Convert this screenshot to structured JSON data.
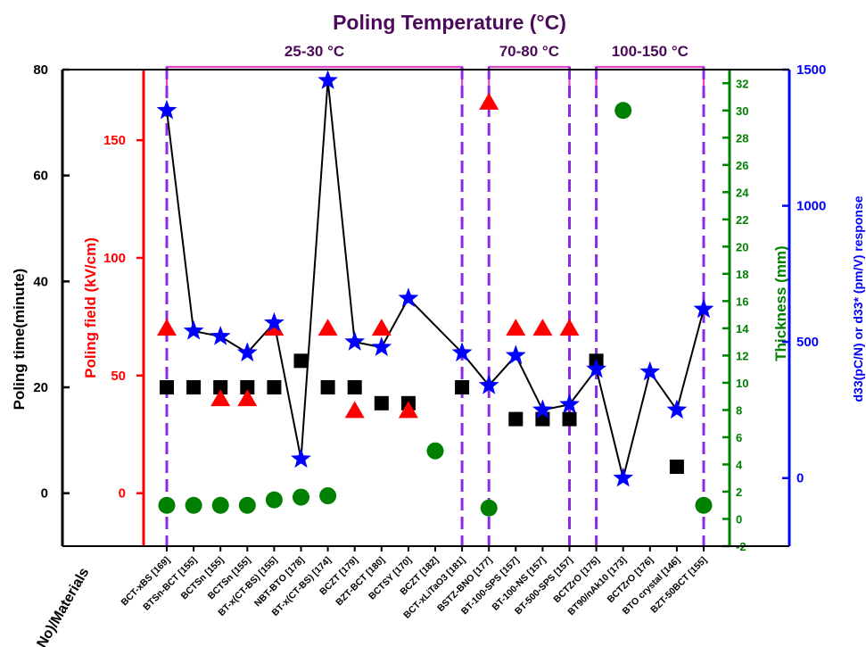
{
  "colors": {
    "black": "#000000",
    "poling_field": "#ff0000",
    "thickness": "#008000",
    "d33": "#0000ff",
    "temp_divider": "#8a2be2",
    "temp_bracket": "#e048c8",
    "title": "#4b0b5a"
  },
  "chart_data": {
    "type": "scatter",
    "title": "Poling Temperature (°C)",
    "xlabel": "(Ref.No)/Materials",
    "categories": [
      "BCT-xBS [169]",
      "BTSn-BCT [155]",
      "BCTSn [155]",
      "BCTSn [155]",
      "BT-x(CT-BS) [155]",
      "NBT-BTO [178]",
      "BT-x(CT-BS) [174]",
      "BCZT [179]",
      "BZT-BCT [180]",
      "BCTSY [170]",
      "BCZT [182]",
      "BCT-xLiTaO3 [181]",
      "BSTZ-BNO [177]",
      "BT-100-SPS [157]",
      "BT-100-NS [157]",
      "BT-500-SPS [157]",
      "BCTZrO [175]",
      "BT90/nAk10 [173]",
      "BCTZrO [176]",
      "BTO crystal [146]",
      "BZT-50BCT [155]"
    ],
    "temperature_ranges": [
      {
        "label": "25-30 °C",
        "from_index": 0,
        "to_index": 11
      },
      {
        "label": "70-80 °C",
        "from_index": 12,
        "to_index": 15
      },
      {
        "label": "100-150 °C",
        "from_index": 16,
        "to_index": 20
      }
    ],
    "axes": {
      "left_black": {
        "label": "Poling time(minute)",
        "ticks": [
          0,
          20,
          40,
          60,
          80
        ],
        "ylim": [
          -10,
          80
        ]
      },
      "left_red": {
        "label": "Poling field (kV/cm)",
        "ticks": [
          0,
          50,
          100,
          150
        ],
        "ylim": [
          -22.5,
          180
        ]
      },
      "right_green": {
        "label": "Thickness (mm)",
        "ticks": [
          -2,
          0,
          2,
          4,
          6,
          8,
          10,
          12,
          14,
          16,
          18,
          20,
          22,
          24,
          26,
          28,
          30,
          32
        ],
        "ylim": [
          -2,
          33
        ]
      },
      "right_blue": {
        "label": "d33(pC/N) or d33* (pm/V) response",
        "ticks": [
          0,
          500,
          1000,
          1500
        ],
        "ylim": [
          -250,
          1500
        ]
      }
    },
    "series": [
      {
        "name": "Poling time(minute)",
        "marker": "square",
        "axis": "left_black",
        "points": [
          [
            0,
            20
          ],
          [
            1,
            20
          ],
          [
            2,
            20
          ],
          [
            3,
            20
          ],
          [
            4,
            20
          ],
          [
            5,
            25
          ],
          [
            6,
            20
          ],
          [
            7,
            20
          ],
          [
            8,
            17
          ],
          [
            9,
            17
          ],
          [
            11,
            20
          ],
          [
            13,
            14
          ],
          [
            14,
            14
          ],
          [
            15,
            14
          ],
          [
            16,
            25
          ],
          [
            19,
            5
          ]
        ]
      },
      {
        "name": "Poling field (kV/cm)",
        "marker": "triangle",
        "axis": "left_red",
        "points": [
          [
            0,
            70
          ],
          [
            2,
            40
          ],
          [
            3,
            40
          ],
          [
            4,
            70
          ],
          [
            6,
            70
          ],
          [
            7,
            35
          ],
          [
            8,
            70
          ],
          [
            9,
            35
          ],
          [
            12,
            166
          ],
          [
            13,
            70
          ],
          [
            14,
            70
          ],
          [
            15,
            70
          ]
        ]
      },
      {
        "name": "Thickness (mm)",
        "marker": "circle",
        "axis": "right_green",
        "points": [
          [
            0,
            1
          ],
          [
            1,
            1
          ],
          [
            2,
            1
          ],
          [
            3,
            1
          ],
          [
            4,
            1.4
          ],
          [
            5,
            1.6
          ],
          [
            6,
            1.7
          ],
          [
            10,
            5
          ],
          [
            12,
            0.8
          ],
          [
            17,
            30
          ],
          [
            20,
            1
          ]
        ]
      },
      {
        "name": "d33(pC/N) or d33* (pm/V) response",
        "marker": "star",
        "axis": "right_blue",
        "connected": true,
        "points": [
          [
            0,
            1350
          ],
          [
            1,
            540
          ],
          [
            2,
            520
          ],
          [
            3,
            460
          ],
          [
            4,
            570
          ],
          [
            5,
            70
          ],
          [
            6,
            1460
          ],
          [
            7,
            500
          ],
          [
            8,
            480
          ],
          [
            9,
            660
          ],
          [
            11,
            460
          ],
          [
            12,
            340
          ],
          [
            13,
            450
          ],
          [
            14,
            250
          ],
          [
            15,
            270
          ],
          [
            16,
            400
          ],
          [
            17,
            0
          ],
          [
            18,
            390
          ],
          [
            19,
            250
          ],
          [
            20,
            620
          ]
        ]
      }
    ]
  }
}
